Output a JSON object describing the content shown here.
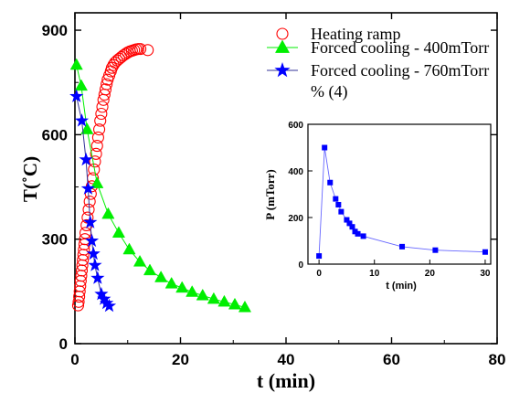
{
  "chart_data": [
    {
      "type": "scatter",
      "xlabel": "t (min)",
      "ylabel": "T(˚C)",
      "xlim": [
        0,
        80
      ],
      "ylim": [
        0,
        950
      ],
      "xticks": [
        0,
        20,
        40,
        60,
        80
      ],
      "yticks": [
        0,
        300,
        600,
        900
      ],
      "series": [
        {
          "name": "Heating ramp",
          "marker": "circle-open",
          "color": "#ff0000",
          "line": false,
          "points": [
            [
              0.6,
              110
            ],
            [
              0.7,
              120
            ],
            [
              0.8,
              135
            ],
            [
              0.9,
              150
            ],
            [
              1.0,
              165
            ],
            [
              1.1,
              180
            ],
            [
              1.2,
              195
            ],
            [
              1.3,
              210
            ],
            [
              1.4,
              225
            ],
            [
              1.5,
              240
            ],
            [
              1.6,
              255
            ],
            [
              1.7,
              270
            ],
            [
              1.8,
              285
            ],
            [
              1.9,
              300
            ],
            [
              2.0,
              318
            ],
            [
              2.2,
              340
            ],
            [
              2.4,
              362
            ],
            [
              2.6,
              385
            ],
            [
              2.8,
              408
            ],
            [
              3.0,
              430
            ],
            [
              3.2,
              452
            ],
            [
              3.4,
              475
            ],
            [
              3.6,
              500
            ],
            [
              3.8,
              523
            ],
            [
              4.0,
              545
            ],
            [
              4.2,
              568
            ],
            [
              4.4,
              592
            ],
            [
              4.6,
              615
            ],
            [
              4.8,
              640
            ],
            [
              5.0,
              660
            ],
            [
              5.2,
              680
            ],
            [
              5.4,
              700
            ],
            [
              5.6,
              715
            ],
            [
              5.8,
              730
            ],
            [
              6.0,
              745
            ],
            [
              6.2,
              758
            ],
            [
              6.5,
              770
            ],
            [
              6.8,
              782
            ],
            [
              7.0,
              792
            ],
            [
              7.3,
              800
            ],
            [
              7.6,
              807
            ],
            [
              8.0,
              813
            ],
            [
              8.4,
              818
            ],
            [
              8.8,
              823
            ],
            [
              9.2,
              828
            ],
            [
              9.6,
              832
            ],
            [
              10.0,
              836
            ],
            [
              10.4,
              839
            ],
            [
              10.8,
              841
            ],
            [
              11.2,
              843
            ],
            [
              11.6,
              845
            ],
            [
              12.0,
              846
            ],
            [
              12.4,
              846
            ],
            [
              13.8,
              843
            ]
          ]
        },
        {
          "name": "Forced cooling - 400mTorr",
          "marker": "triangle",
          "color": "#00ee00",
          "line": true,
          "points": [
            [
              0.3,
              800
            ],
            [
              1.2,
              740
            ],
            [
              2.3,
              615
            ],
            [
              4.2,
              460
            ],
            [
              6.3,
              372
            ],
            [
              8.3,
              318
            ],
            [
              10.3,
              270
            ],
            [
              12.3,
              235
            ],
            [
              14.2,
              210
            ],
            [
              16.3,
              190
            ],
            [
              18.3,
              172
            ],
            [
              20.3,
              160
            ],
            [
              22.2,
              148
            ],
            [
              24.2,
              138
            ],
            [
              26.3,
              128
            ],
            [
              28.3,
              120
            ],
            [
              30.3,
              112
            ],
            [
              32.2,
              104
            ]
          ]
        },
        {
          "name": "Forced cooling - 760mTorr",
          "marker": "star",
          "color": "#0000ff",
          "line": true,
          "points": [
            [
              0.3,
              710
            ],
            [
              1.3,
              640
            ],
            [
              2.1,
              528
            ],
            [
              2.5,
              445
            ],
            [
              2.9,
              348
            ],
            [
              3.2,
              295
            ],
            [
              3.5,
              258
            ],
            [
              3.8,
              225
            ],
            [
              4.3,
              188
            ],
            [
              5.0,
              142
            ],
            [
              5.5,
              128
            ],
            [
              6.0,
              116
            ],
            [
              6.5,
              108
            ]
          ]
        }
      ],
      "legend_extra": "% (4)"
    },
    {
      "type": "scatter",
      "inset": true,
      "xlabel": "t (min)",
      "ylabel": "P (mTorr)",
      "xlim": [
        -2,
        31
      ],
      "ylim": [
        0,
        600
      ],
      "xticks": [
        0,
        10,
        20,
        30
      ],
      "yticks": [
        0,
        200,
        400,
        600
      ],
      "series": [
        {
          "marker": "square",
          "color": "#0000ff",
          "line": true,
          "points": [
            [
              0,
              35
            ],
            [
              1,
              500
            ],
            [
              2,
              350
            ],
            [
              3,
              280
            ],
            [
              3.5,
              255
            ],
            [
              4,
              225
            ],
            [
              5,
              190
            ],
            [
              5.5,
              175
            ],
            [
              6,
              160
            ],
            [
              6.5,
              140
            ],
            [
              7,
              130
            ],
            [
              8,
              120
            ],
            [
              15,
              75
            ],
            [
              21,
              60
            ],
            [
              30,
              52
            ]
          ]
        }
      ]
    }
  ]
}
